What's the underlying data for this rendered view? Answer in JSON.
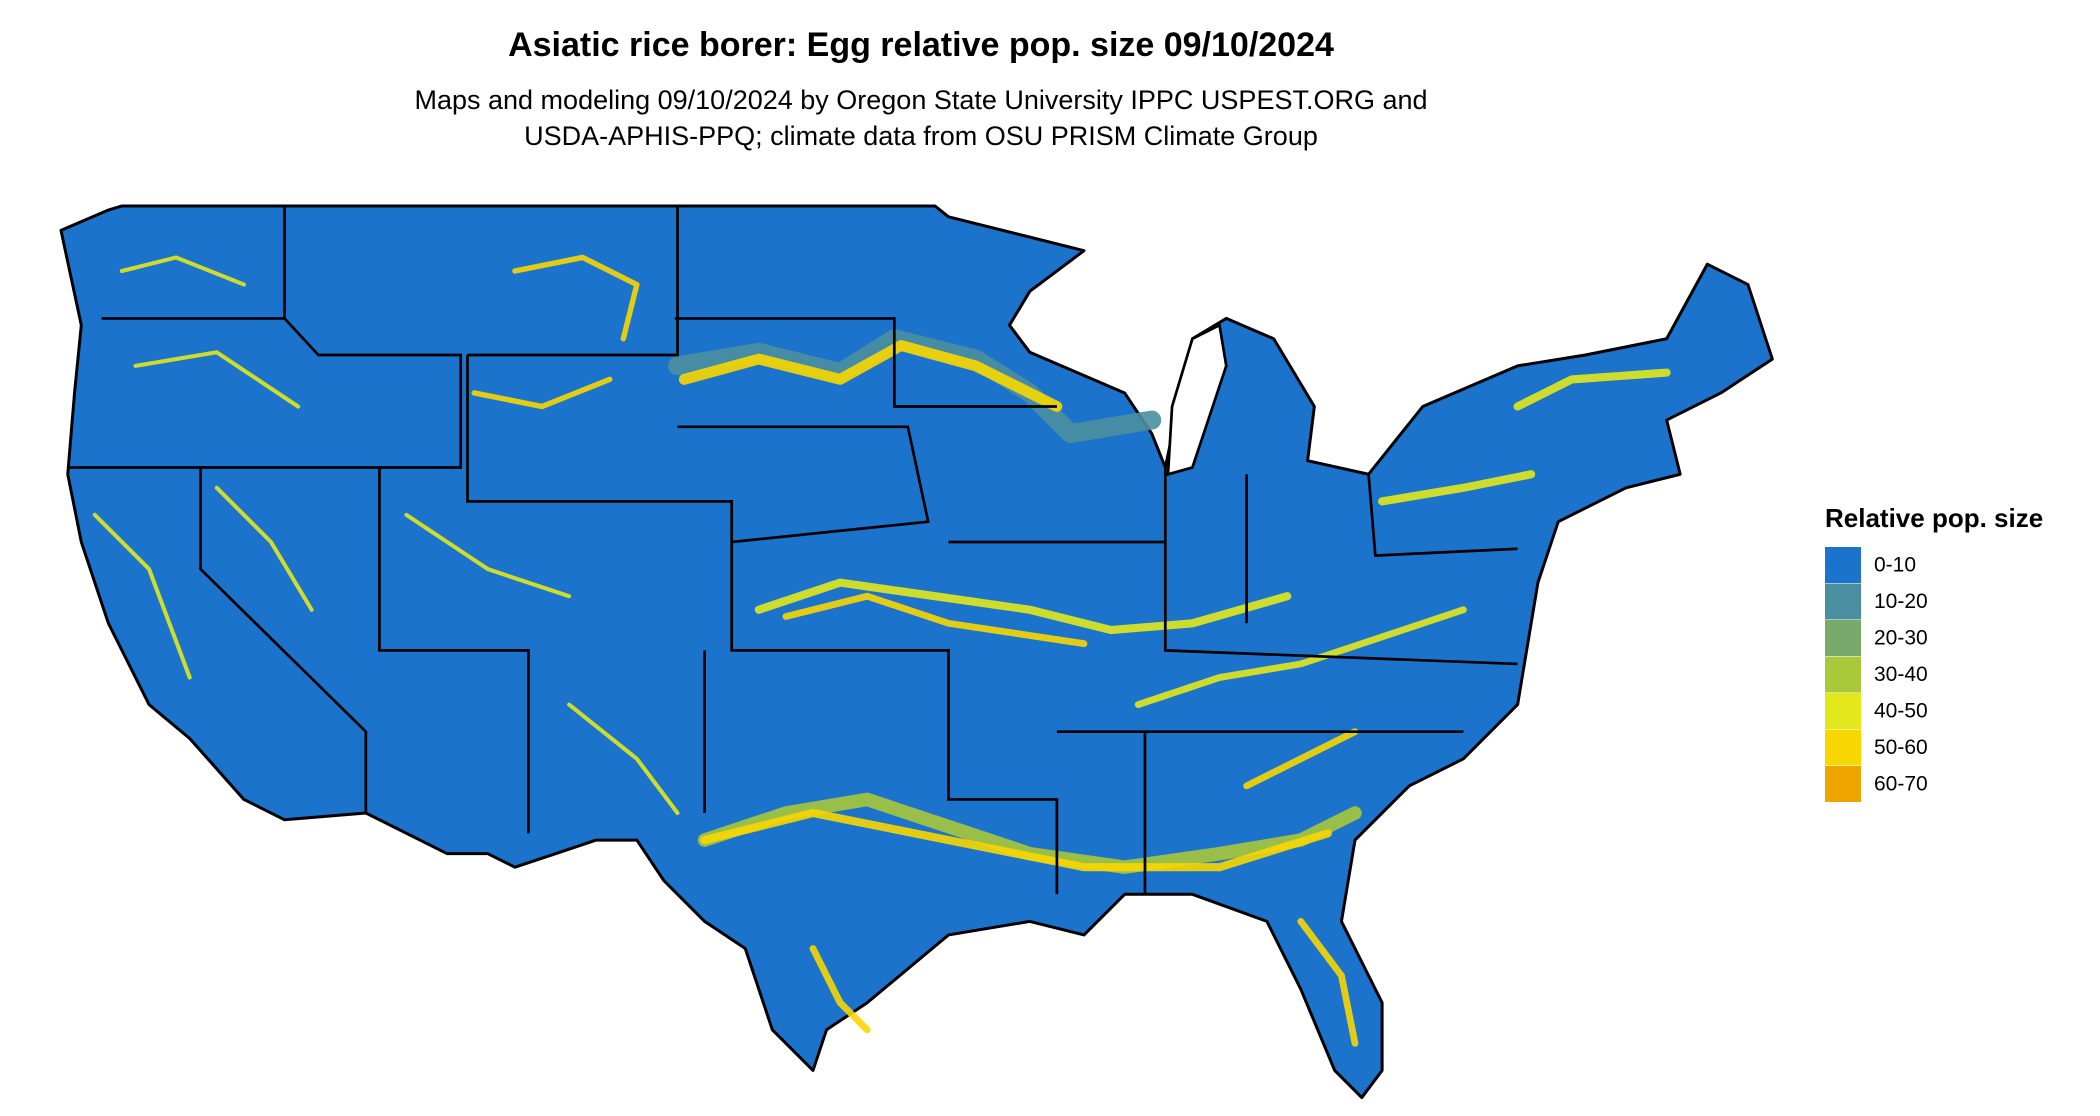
{
  "title": "Asiatic rice borer: Egg relative pop. size 09/10/2024",
  "subtitle": [
    "Maps and modeling 09/10/2024 by Oregon State University IPPC USPEST.ORG and",
    "USDA-APHIS-PPQ; climate data from OSU PRISM Climate Group"
  ],
  "legend": {
    "title": "Relative pop. size",
    "items": [
      {
        "label": "0-10",
        "color": "#1b73cc"
      },
      {
        "label": "10-20",
        "color": "#4a8fa0"
      },
      {
        "label": "20-30",
        "color": "#7aa96c"
      },
      {
        "label": "30-40",
        "color": "#a9c83a"
      },
      {
        "label": "40-50",
        "color": "#e2e81c"
      },
      {
        "label": "50-60",
        "color": "#f8d700"
      },
      {
        "label": "60-70",
        "color": "#eea500"
      }
    ]
  }
}
